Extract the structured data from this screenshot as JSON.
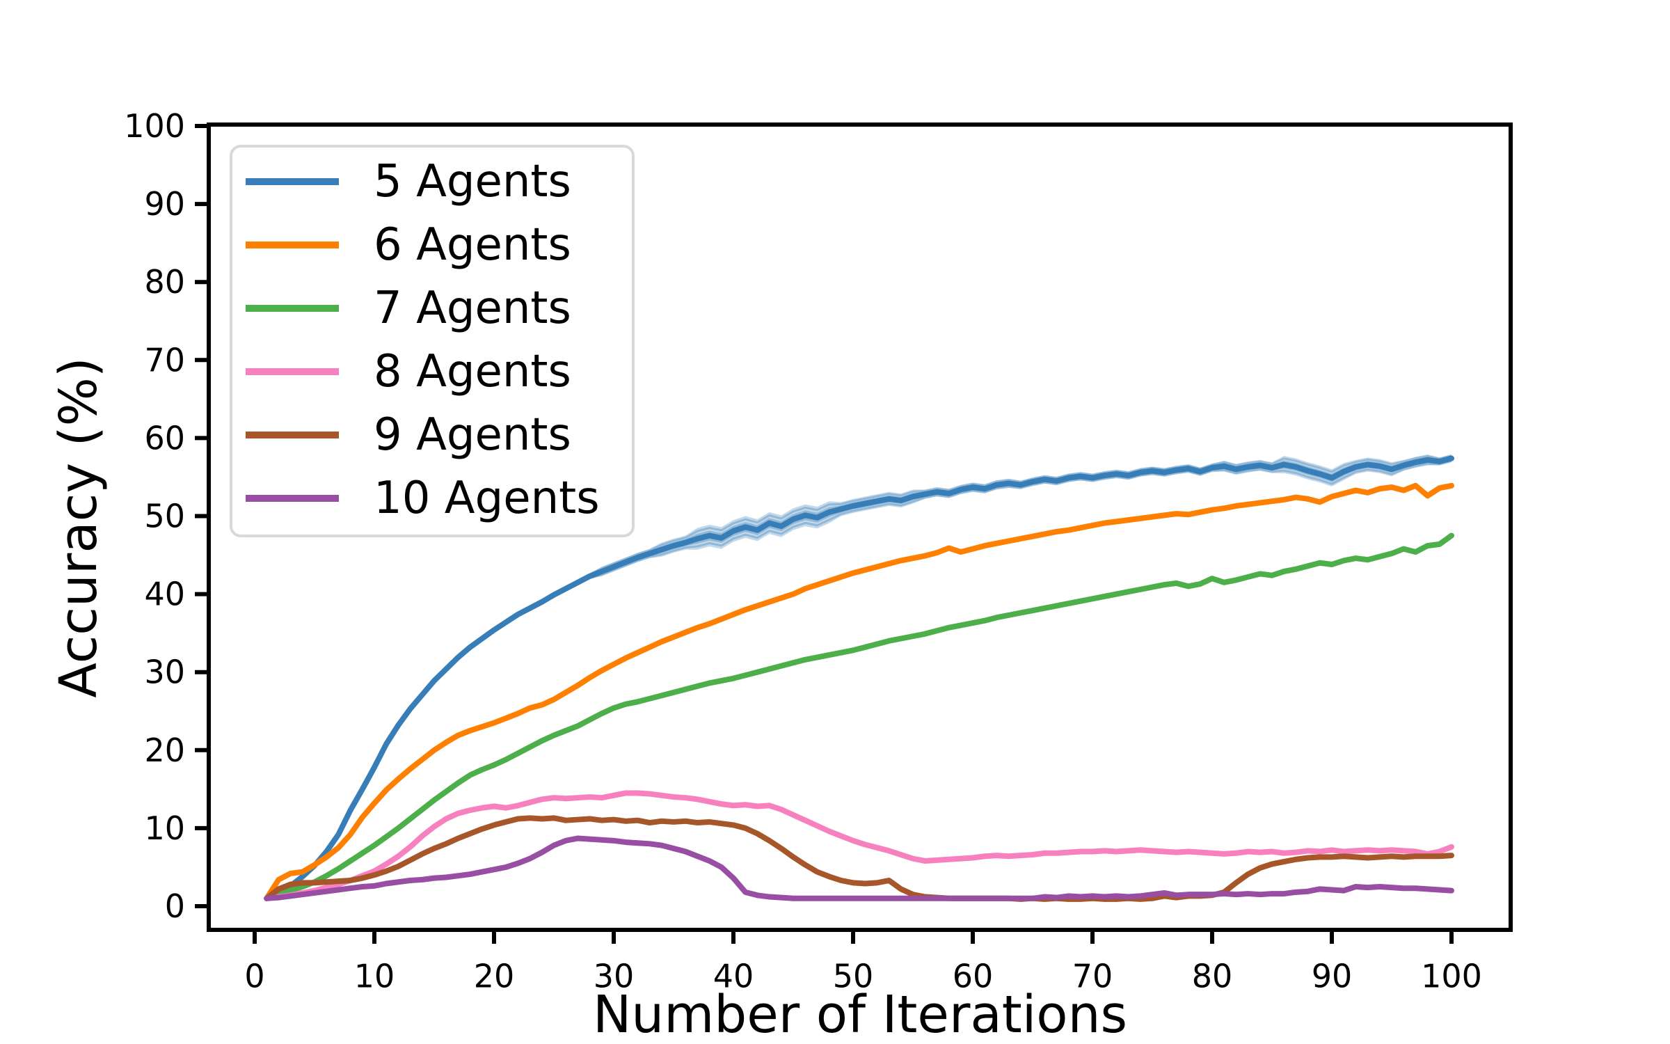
{
  "figure": {
    "background_color": "#ffffff",
    "text_color": "#000000",
    "spine_color": "#000000",
    "legend_border_color": "#d9d9d9"
  },
  "legend": {
    "position": "upper left",
    "entries": [
      {
        "label": "5 Agents",
        "color": "#377eb8"
      },
      {
        "label": "6 Agents",
        "color": "#ff7f00"
      },
      {
        "label": "7 Agents",
        "color": "#4daf4a"
      },
      {
        "label": "8 Agents",
        "color": "#f781bf"
      },
      {
        "label": "9 Agents",
        "color": "#a65628"
      },
      {
        "label": "10 Agents",
        "color": "#984ea3"
      }
    ]
  },
  "chart_data": {
    "type": "line",
    "title": "",
    "xlabel": "Number of Iterations",
    "ylabel": "Accuracy (%)",
    "x_ticks": [
      0,
      10,
      20,
      30,
      40,
      50,
      60,
      70,
      80,
      90,
      100
    ],
    "y_ticks": [
      0,
      10,
      20,
      30,
      40,
      50,
      60,
      70,
      80,
      90,
      100
    ],
    "xlim": [
      -4,
      105
    ],
    "ylim": [
      -3,
      100
    ],
    "grid": false,
    "legend_position": "upper left",
    "x": [
      1,
      2,
      3,
      4,
      5,
      6,
      7,
      8,
      9,
      10,
      11,
      12,
      13,
      14,
      15,
      16,
      17,
      18,
      19,
      20,
      21,
      22,
      23,
      24,
      25,
      26,
      27,
      28,
      29,
      30,
      31,
      32,
      33,
      34,
      35,
      36,
      37,
      38,
      39,
      40,
      41,
      42,
      43,
      44,
      45,
      46,
      47,
      48,
      49,
      50,
      51,
      52,
      53,
      54,
      55,
      56,
      57,
      58,
      59,
      60,
      61,
      62,
      63,
      64,
      65,
      66,
      67,
      68,
      69,
      70,
      71,
      72,
      73,
      74,
      75,
      76,
      77,
      78,
      79,
      80,
      81,
      82,
      83,
      84,
      85,
      86,
      87,
      88,
      89,
      90,
      91,
      92,
      93,
      94,
      95,
      96,
      97,
      98,
      99,
      100
    ],
    "series": [
      {
        "name": "5 Agents",
        "color": "#377eb8",
        "values": [
          1.0,
          1.8,
          2.6,
          3.8,
          5.2,
          7.0,
          9.2,
          12.3,
          15.0,
          17.8,
          20.8,
          23.2,
          25.3,
          27.1,
          28.9,
          30.4,
          31.9,
          33.2,
          34.3,
          35.4,
          36.4,
          37.4,
          38.2,
          39.0,
          39.9,
          40.7,
          41.5,
          42.3,
          42.9,
          43.5,
          44.1,
          44.7,
          45.2,
          45.7,
          46.2,
          46.6,
          47.1,
          47.5,
          47.2,
          48.1,
          48.6,
          48.2,
          49.1,
          48.7,
          49.6,
          50.1,
          49.8,
          50.5,
          50.9,
          51.3,
          51.6,
          51.9,
          52.2,
          52.0,
          52.5,
          52.8,
          53.1,
          52.9,
          53.4,
          53.7,
          53.5,
          54.0,
          54.2,
          54.0,
          54.4,
          54.7,
          54.5,
          54.9,
          55.1,
          54.9,
          55.2,
          55.4,
          55.2,
          55.6,
          55.8,
          55.6,
          55.9,
          56.1,
          55.7,
          56.2,
          56.4,
          56.0,
          56.3,
          56.5,
          56.2,
          56.6,
          56.3,
          55.8,
          55.4,
          54.9,
          55.7,
          56.3,
          56.6,
          56.4,
          56.0,
          56.5,
          56.9,
          57.2,
          57.0,
          57.4
        ],
        "band_halfwidth": [
          0.35,
          0.35,
          0.35,
          0.35,
          0.35,
          0.35,
          0.35,
          0.35,
          0.35,
          0.35,
          0.35,
          0.35,
          0.35,
          0.35,
          0.35,
          0.35,
          0.35,
          0.35,
          0.35,
          0.35,
          0.35,
          0.35,
          0.35,
          0.35,
          0.35,
          0.35,
          0.35,
          0.35,
          0.6,
          0.6,
          0.6,
          0.6,
          0.6,
          0.9,
          0.9,
          0.9,
          1.4,
          1.4,
          1.4,
          1.4,
          1.4,
          1.4,
          1.4,
          1.4,
          1.4,
          1.4,
          1.4,
          1.4,
          0.9,
          0.9,
          0.9,
          0.9,
          0.9,
          0.9,
          0.9,
          0.6,
          0.6,
          0.6,
          0.6,
          0.6,
          0.6,
          0.6,
          0.6,
          0.55,
          0.55,
          0.55,
          0.55,
          0.55,
          0.55,
          0.55,
          0.55,
          0.55,
          0.55,
          0.55,
          0.55,
          0.55,
          0.55,
          0.55,
          0.55,
          0.55,
          0.7,
          0.7,
          0.7,
          0.7,
          0.7,
          1.1,
          1.1,
          1.1,
          1.1,
          1.1,
          1.1,
          0.9,
          0.9,
          0.9,
          0.9,
          0.7,
          0.7,
          0.7,
          0.5,
          0.5
        ]
      },
      {
        "name": "6 Agents",
        "color": "#ff7f00",
        "values": [
          1.0,
          3.4,
          4.2,
          4.4,
          5.3,
          6.3,
          7.5,
          9.2,
          11.4,
          13.2,
          14.9,
          16.3,
          17.6,
          18.8,
          20.0,
          21.0,
          21.9,
          22.5,
          23.0,
          23.5,
          24.1,
          24.7,
          25.4,
          25.8,
          26.5,
          27.4,
          28.3,
          29.3,
          30.2,
          31.0,
          31.8,
          32.5,
          33.2,
          33.9,
          34.5,
          35.1,
          35.7,
          36.2,
          36.8,
          37.4,
          38.0,
          38.5,
          39.0,
          39.5,
          40.0,
          40.7,
          41.2,
          41.7,
          42.2,
          42.7,
          43.1,
          43.5,
          43.9,
          44.3,
          44.6,
          44.9,
          45.3,
          45.9,
          45.4,
          45.8,
          46.2,
          46.5,
          46.8,
          47.1,
          47.4,
          47.7,
          48.0,
          48.2,
          48.5,
          48.8,
          49.1,
          49.3,
          49.5,
          49.7,
          49.9,
          50.1,
          50.3,
          50.2,
          50.5,
          50.8,
          51.0,
          51.3,
          51.5,
          51.7,
          51.9,
          52.1,
          52.4,
          52.2,
          51.8,
          52.5,
          52.9,
          53.3,
          53.0,
          53.5,
          53.7,
          53.3,
          53.9,
          52.6,
          53.6,
          53.9
        ]
      },
      {
        "name": "7 Agents",
        "color": "#4daf4a",
        "values": [
          1.0,
          1.5,
          2.0,
          2.5,
          3.1,
          3.9,
          4.8,
          5.8,
          6.8,
          7.8,
          8.9,
          10.0,
          11.2,
          12.4,
          13.6,
          14.7,
          15.8,
          16.8,
          17.5,
          18.1,
          18.8,
          19.6,
          20.4,
          21.2,
          21.9,
          22.5,
          23.1,
          23.9,
          24.7,
          25.4,
          25.9,
          26.2,
          26.6,
          27.0,
          27.4,
          27.8,
          28.2,
          28.6,
          28.9,
          29.2,
          29.6,
          30.0,
          30.4,
          30.8,
          31.2,
          31.6,
          31.9,
          32.2,
          32.5,
          32.8,
          33.2,
          33.6,
          34.0,
          34.3,
          34.6,
          34.9,
          35.3,
          35.7,
          36.0,
          36.3,
          36.6,
          37.0,
          37.3,
          37.6,
          37.9,
          38.2,
          38.5,
          38.8,
          39.1,
          39.4,
          39.7,
          40.0,
          40.3,
          40.6,
          40.9,
          41.2,
          41.4,
          41.0,
          41.3,
          42.0,
          41.5,
          41.8,
          42.2,
          42.6,
          42.4,
          42.9,
          43.2,
          43.6,
          44.0,
          43.8,
          44.3,
          44.6,
          44.4,
          44.8,
          45.2,
          45.8,
          45.4,
          46.2,
          46.4,
          47.5
        ]
      },
      {
        "name": "8 Agents",
        "color": "#f781bf",
        "values": [
          1.0,
          1.2,
          1.4,
          1.7,
          2.0,
          2.4,
          2.8,
          3.3,
          3.9,
          4.5,
          5.4,
          6.4,
          7.6,
          9.0,
          10.2,
          11.2,
          11.9,
          12.3,
          12.6,
          12.8,
          12.6,
          12.9,
          13.3,
          13.7,
          13.9,
          13.8,
          13.9,
          14.0,
          13.9,
          14.2,
          14.5,
          14.5,
          14.4,
          14.2,
          14.0,
          13.9,
          13.7,
          13.4,
          13.1,
          12.9,
          13.0,
          12.8,
          12.9,
          12.4,
          11.7,
          11.0,
          10.3,
          9.6,
          9.0,
          8.4,
          7.9,
          7.5,
          7.1,
          6.6,
          6.1,
          5.8,
          5.9,
          6.0,
          6.1,
          6.2,
          6.4,
          6.5,
          6.4,
          6.5,
          6.6,
          6.8,
          6.8,
          6.9,
          7.0,
          7.0,
          7.1,
          7.0,
          7.1,
          7.2,
          7.1,
          7.0,
          6.9,
          7.0,
          6.9,
          6.8,
          6.7,
          6.8,
          7.0,
          6.9,
          7.0,
          6.8,
          6.9,
          7.1,
          7.0,
          7.2,
          7.0,
          7.1,
          7.2,
          7.1,
          7.2,
          7.1,
          7.0,
          6.7,
          7.0,
          7.6
        ]
      },
      {
        "name": "9 Agents",
        "color": "#a65628",
        "values": [
          1.0,
          2.2,
          2.8,
          3.0,
          3.0,
          3.1,
          3.2,
          3.3,
          3.6,
          4.0,
          4.5,
          5.1,
          5.9,
          6.7,
          7.4,
          8.0,
          8.7,
          9.3,
          9.9,
          10.4,
          10.8,
          11.2,
          11.3,
          11.2,
          11.3,
          11.0,
          11.1,
          11.2,
          11.0,
          11.1,
          10.9,
          11.0,
          10.7,
          10.9,
          10.8,
          10.9,
          10.7,
          10.8,
          10.6,
          10.4,
          10.0,
          9.3,
          8.4,
          7.4,
          6.3,
          5.3,
          4.4,
          3.8,
          3.3,
          3.0,
          2.9,
          3.0,
          3.3,
          2.2,
          1.5,
          1.2,
          1.1,
          1.0,
          1.0,
          1.0,
          1.0,
          1.0,
          1.0,
          0.9,
          1.0,
          0.9,
          1.0,
          0.9,
          0.9,
          1.0,
          0.9,
          0.9,
          1.0,
          0.9,
          1.0,
          1.3,
          1.1,
          1.3,
          1.3,
          1.4,
          1.8,
          3.0,
          4.1,
          4.9,
          5.4,
          5.7,
          6.0,
          6.2,
          6.3,
          6.3,
          6.4,
          6.3,
          6.2,
          6.3,
          6.4,
          6.3,
          6.4,
          6.4,
          6.4,
          6.5
        ]
      },
      {
        "name": "10 Agents",
        "color": "#984ea3",
        "values": [
          1.0,
          1.1,
          1.3,
          1.5,
          1.7,
          1.9,
          2.1,
          2.3,
          2.5,
          2.6,
          2.9,
          3.1,
          3.3,
          3.4,
          3.6,
          3.7,
          3.9,
          4.1,
          4.4,
          4.7,
          5.0,
          5.5,
          6.1,
          6.9,
          7.8,
          8.4,
          8.7,
          8.6,
          8.5,
          8.4,
          8.2,
          8.1,
          8.0,
          7.8,
          7.4,
          7.0,
          6.4,
          5.8,
          5.0,
          3.6,
          1.8,
          1.4,
          1.2,
          1.1,
          1.0,
          1.0,
          1.0,
          1.0,
          1.0,
          1.0,
          1.0,
          1.0,
          1.0,
          1.0,
          1.0,
          1.0,
          1.0,
          1.0,
          1.0,
          1.0,
          1.0,
          1.0,
          1.0,
          1.0,
          1.0,
          1.2,
          1.1,
          1.3,
          1.2,
          1.3,
          1.2,
          1.3,
          1.2,
          1.3,
          1.5,
          1.7,
          1.4,
          1.5,
          1.5,
          1.5,
          1.6,
          1.5,
          1.6,
          1.5,
          1.6,
          1.6,
          1.8,
          1.9,
          2.2,
          2.1,
          2.0,
          2.5,
          2.4,
          2.5,
          2.4,
          2.3,
          2.3,
          2.2,
          2.1,
          2.0
        ]
      }
    ]
  }
}
